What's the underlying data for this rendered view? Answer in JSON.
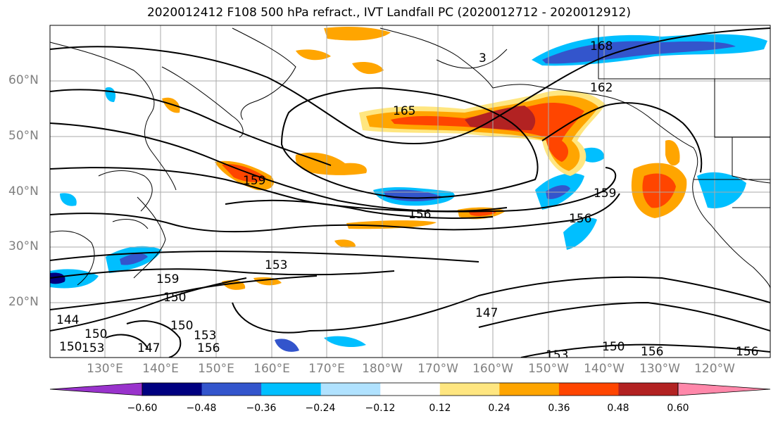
{
  "title": "2020012412 F108 500 hPa refract., IVT Landfall PC (2020012712 - 2020012912)",
  "map": {
    "region": "North Pacific",
    "lat_labels": [
      "60°N",
      "50°N",
      "40°N",
      "30°N",
      "20°N"
    ],
    "lon_labels": [
      "130°E",
      "140°E",
      "150°E",
      "160°E",
      "170°E",
      "180°W",
      "170°W",
      "160°W",
      "150°W",
      "140°W",
      "130°W",
      "120°W"
    ],
    "contour_labels": [
      "168",
      "162",
      "165",
      "159",
      "159",
      "156",
      "156",
      "153",
      "159",
      "150",
      "150",
      "147",
      "150",
      "153",
      "156",
      "147",
      "144",
      "153",
      "150",
      "156",
      "156",
      "153",
      "3",
      "150"
    ]
  },
  "colorbar": {
    "ticks": [
      "−0.60",
      "−0.48",
      "−0.36",
      "−0.24",
      "−0.12",
      "0.12",
      "0.24",
      "0.36",
      "0.48",
      "0.60"
    ],
    "colors": [
      "#9933cc",
      "#000080",
      "#3355cc",
      "#00bfff",
      "#b0e2ff",
      "#ffffff",
      "#ffe680",
      "#ffa500",
      "#ff4500",
      "#b22222",
      "#ff88aa"
    ]
  }
}
